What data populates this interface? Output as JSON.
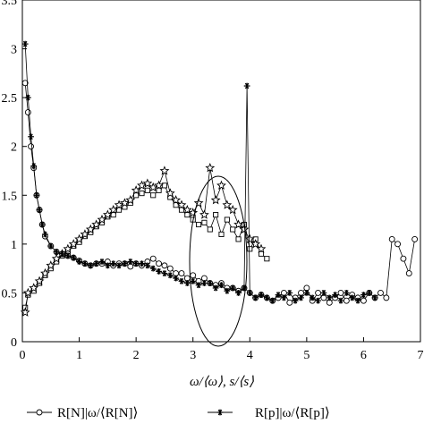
{
  "chart_data": {
    "type": "line",
    "xlabel": "ω/⟨ω⟩, s/⟨s⟩",
    "xlim": [
      0,
      7
    ],
    "ylim": [
      0,
      3.5
    ],
    "x_ticks": [
      0,
      1,
      2,
      3,
      4,
      5,
      6,
      7
    ],
    "y_ticks": [
      0,
      0.5,
      1,
      1.5,
      2,
      2.5,
      3,
      3.5
    ],
    "grid": false,
    "legend_position": "bottom",
    "annotation": "ellipse highlighting fluctuations near x ≈ 3.4",
    "series": [
      {
        "name": "R[N]|ω/⟨R[N]⟩",
        "marker": "circle",
        "x": [
          0.05,
          0.1,
          0.15,
          0.2,
          0.25,
          0.3,
          0.35,
          0.4,
          0.5,
          0.6,
          0.7,
          0.8,
          0.9,
          1.0,
          1.1,
          1.2,
          1.3,
          1.4,
          1.5,
          1.6,
          1.7,
          1.8,
          1.9,
          2.0,
          2.1,
          2.2,
          2.3,
          2.4,
          2.5,
          2.6,
          2.7,
          2.8,
          2.9,
          3.0,
          3.1,
          3.2,
          3.3,
          3.4,
          3.5,
          3.6,
          3.7,
          3.8,
          3.9,
          4.0,
          4.1,
          4.2,
          4.3,
          4.4,
          4.5,
          4.6,
          4.7,
          4.8,
          4.9,
          5.0,
          5.1,
          5.2,
          5.3,
          5.4,
          5.5,
          5.6,
          5.7,
          5.8,
          5.9,
          6.0,
          6.1,
          6.2,
          6.3,
          6.4,
          6.5,
          6.6,
          6.7,
          6.8,
          6.9
        ],
        "y": [
          2.65,
          2.35,
          2.0,
          1.78,
          1.5,
          1.35,
          1.2,
          1.08,
          0.98,
          0.92,
          0.9,
          0.88,
          0.86,
          0.83,
          0.8,
          0.78,
          0.8,
          0.8,
          0.82,
          0.78,
          0.8,
          0.8,
          0.77,
          0.8,
          0.78,
          0.82,
          0.85,
          0.8,
          0.78,
          0.75,
          0.7,
          0.7,
          0.65,
          0.68,
          0.62,
          0.65,
          0.6,
          0.58,
          0.6,
          0.55,
          0.55,
          0.52,
          0.55,
          0.5,
          0.45,
          0.48,
          0.45,
          0.42,
          0.45,
          0.5,
          0.4,
          0.45,
          0.5,
          0.55,
          0.42,
          0.5,
          0.45,
          0.4,
          0.45,
          0.5,
          0.42,
          0.48,
          0.45,
          0.42,
          0.5,
          0.45,
          0.5,
          0.45,
          1.05,
          1.0,
          0.85,
          0.7,
          1.05
        ]
      },
      {
        "name": "R[p]|ω/⟨R[p]⟩",
        "marker": "asterisk",
        "x": [
          0.05,
          0.1,
          0.15,
          0.2,
          0.25,
          0.3,
          0.35,
          0.4,
          0.5,
          0.6,
          0.7,
          0.8,
          0.9,
          1.0,
          1.1,
          1.2,
          1.3,
          1.4,
          1.5,
          1.6,
          1.7,
          1.8,
          1.9,
          2.0,
          2.1,
          2.2,
          2.3,
          2.4,
          2.5,
          2.6,
          2.7,
          2.8,
          2.9,
          3.0,
          3.1,
          3.2,
          3.3,
          3.4,
          3.5,
          3.6,
          3.7,
          3.8,
          3.9,
          3.95,
          4.0,
          4.1,
          4.2,
          4.3,
          4.4,
          4.5,
          4.6,
          4.7,
          4.8,
          4.9,
          5.0,
          5.1,
          5.2,
          5.3,
          5.4,
          5.5,
          5.6,
          5.7,
          5.8,
          5.9,
          6.0,
          6.1,
          6.2
        ],
        "y": [
          3.05,
          2.5,
          2.1,
          1.8,
          1.5,
          1.35,
          1.2,
          1.1,
          0.98,
          0.92,
          0.9,
          0.88,
          0.86,
          0.82,
          0.8,
          0.78,
          0.8,
          0.82,
          0.78,
          0.8,
          0.78,
          0.8,
          0.82,
          0.8,
          0.8,
          0.78,
          0.75,
          0.72,
          0.7,
          0.68,
          0.65,
          0.62,
          0.6,
          0.62,
          0.58,
          0.6,
          0.6,
          0.55,
          0.58,
          0.52,
          0.55,
          0.5,
          0.55,
          2.62,
          0.5,
          0.45,
          0.48,
          0.45,
          0.42,
          0.48,
          0.45,
          0.5,
          0.42,
          0.45,
          0.5,
          0.45,
          0.42,
          0.5,
          0.45,
          0.48,
          0.42,
          0.5,
          0.45,
          0.42,
          0.48,
          0.5,
          0.45
        ]
      },
      {
        "name": "star",
        "marker": "star",
        "x": [
          0.05,
          0.1,
          0.2,
          0.3,
          0.4,
          0.5,
          0.6,
          0.7,
          0.8,
          0.9,
          1.0,
          1.1,
          1.2,
          1.3,
          1.4,
          1.5,
          1.6,
          1.7,
          1.8,
          1.9,
          2.0,
          2.1,
          2.2,
          2.3,
          2.4,
          2.5,
          2.6,
          2.7,
          2.8,
          2.9,
          3.0,
          3.1,
          3.2,
          3.3,
          3.4,
          3.5,
          3.6,
          3.7,
          3.8,
          3.9,
          4.0,
          4.1,
          4.2
        ],
        "y": [
          0.3,
          0.5,
          0.55,
          0.62,
          0.7,
          0.78,
          0.85,
          0.9,
          0.95,
          1.0,
          1.05,
          1.1,
          1.15,
          1.2,
          1.25,
          1.3,
          1.35,
          1.4,
          1.42,
          1.45,
          1.55,
          1.6,
          1.62,
          1.58,
          1.6,
          1.75,
          1.52,
          1.45,
          1.4,
          1.35,
          1.32,
          1.42,
          1.3,
          1.78,
          1.45,
          1.6,
          1.4,
          1.35,
          1.2,
          1.15,
          1.05,
          1.0,
          0.95
        ]
      },
      {
        "name": "square",
        "marker": "square",
        "x": [
          0.05,
          0.1,
          0.2,
          0.3,
          0.4,
          0.5,
          0.6,
          0.7,
          0.8,
          0.9,
          1.0,
          1.1,
          1.2,
          1.3,
          1.4,
          1.5,
          1.6,
          1.7,
          1.8,
          1.9,
          2.0,
          2.1,
          2.2,
          2.3,
          2.4,
          2.5,
          2.6,
          2.7,
          2.8,
          2.9,
          3.0,
          3.1,
          3.2,
          3.3,
          3.4,
          3.5,
          3.6,
          3.7,
          3.8,
          3.9,
          4.0,
          4.1,
          4.2,
          4.3
        ],
        "y": [
          0.35,
          0.48,
          0.52,
          0.6,
          0.68,
          0.75,
          0.82,
          0.88,
          0.92,
          0.98,
          1.02,
          1.08,
          1.12,
          1.18,
          1.22,
          1.28,
          1.3,
          1.35,
          1.38,
          1.42,
          1.5,
          1.52,
          1.55,
          1.5,
          1.55,
          1.6,
          1.48,
          1.4,
          1.35,
          1.3,
          1.25,
          1.2,
          1.22,
          1.15,
          1.3,
          1.1,
          1.25,
          1.15,
          1.05,
          1.2,
          0.95,
          1.05,
          0.9,
          0.85
        ]
      }
    ],
    "legend": [
      {
        "marker": "circle",
        "label": "R[N]|ω/⟨R[N]⟩"
      },
      {
        "marker": "asterisk",
        "label": "R[p]|ω/⟨R[p]⟩"
      }
    ]
  }
}
